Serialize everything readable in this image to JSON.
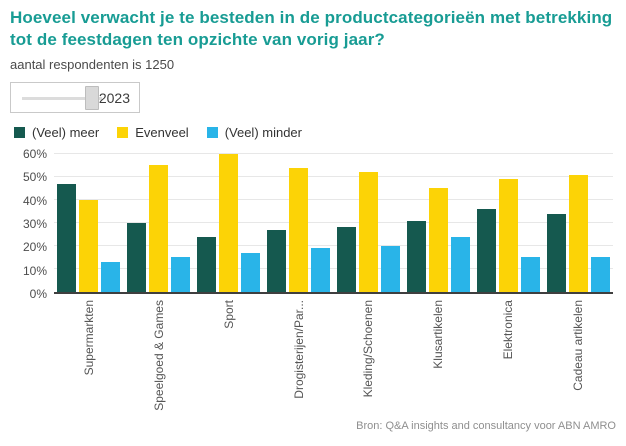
{
  "header": {
    "title": "Hoeveel verwacht je te besteden in de productcategorieën met betrekking tot de feestdagen ten opzichte van vorig jaar?",
    "subtitle": "aantal respondenten is 1250"
  },
  "slider": {
    "value": "2023"
  },
  "footer": {
    "source": "Bron: Q&A insights and consultancy voor ABN AMRO"
  },
  "colors": {
    "title_teal": "#189c94",
    "bar_dark_teal": "#15594f",
    "bar_yellow": "#fcd306",
    "bar_light_blue": "#29b4e8"
  },
  "chart_data": {
    "type": "bar",
    "title": "Hoeveel verwacht je te besteden in de productcategorieën met betrekking tot de feestdagen ten opzichte van vorig jaar?",
    "subtitle": "aantal respondenten is 1250",
    "categories": [
      "Supermarkten",
      "Speelgoed & Games",
      "Sport",
      "Drogisterijen/Par...",
      "Kleding/Schoenen",
      "Klusartikelen",
      "Elektronica",
      "Cadeau artikelen"
    ],
    "series": [
      {
        "name": "(Veel) meer",
        "color": "#15594f",
        "values": [
          47,
          30,
          24,
          27,
          28,
          31,
          36,
          34
        ]
      },
      {
        "name": "Evenveel",
        "color": "#fcd306",
        "values": [
          40,
          55,
          60,
          54,
          52,
          45,
          49,
          51
        ]
      },
      {
        "name": "(Veel) minder",
        "color": "#29b4e8",
        "values": [
          13,
          15,
          17,
          19,
          20,
          24,
          15,
          15
        ]
      }
    ],
    "xlabel": "",
    "ylabel": "",
    "ytick_labels": [
      "0%",
      "10%",
      "20%",
      "30%",
      "40%",
      "50%",
      "60%"
    ],
    "ylim": [
      0,
      60
    ],
    "grid": true,
    "legend_position": "top"
  }
}
